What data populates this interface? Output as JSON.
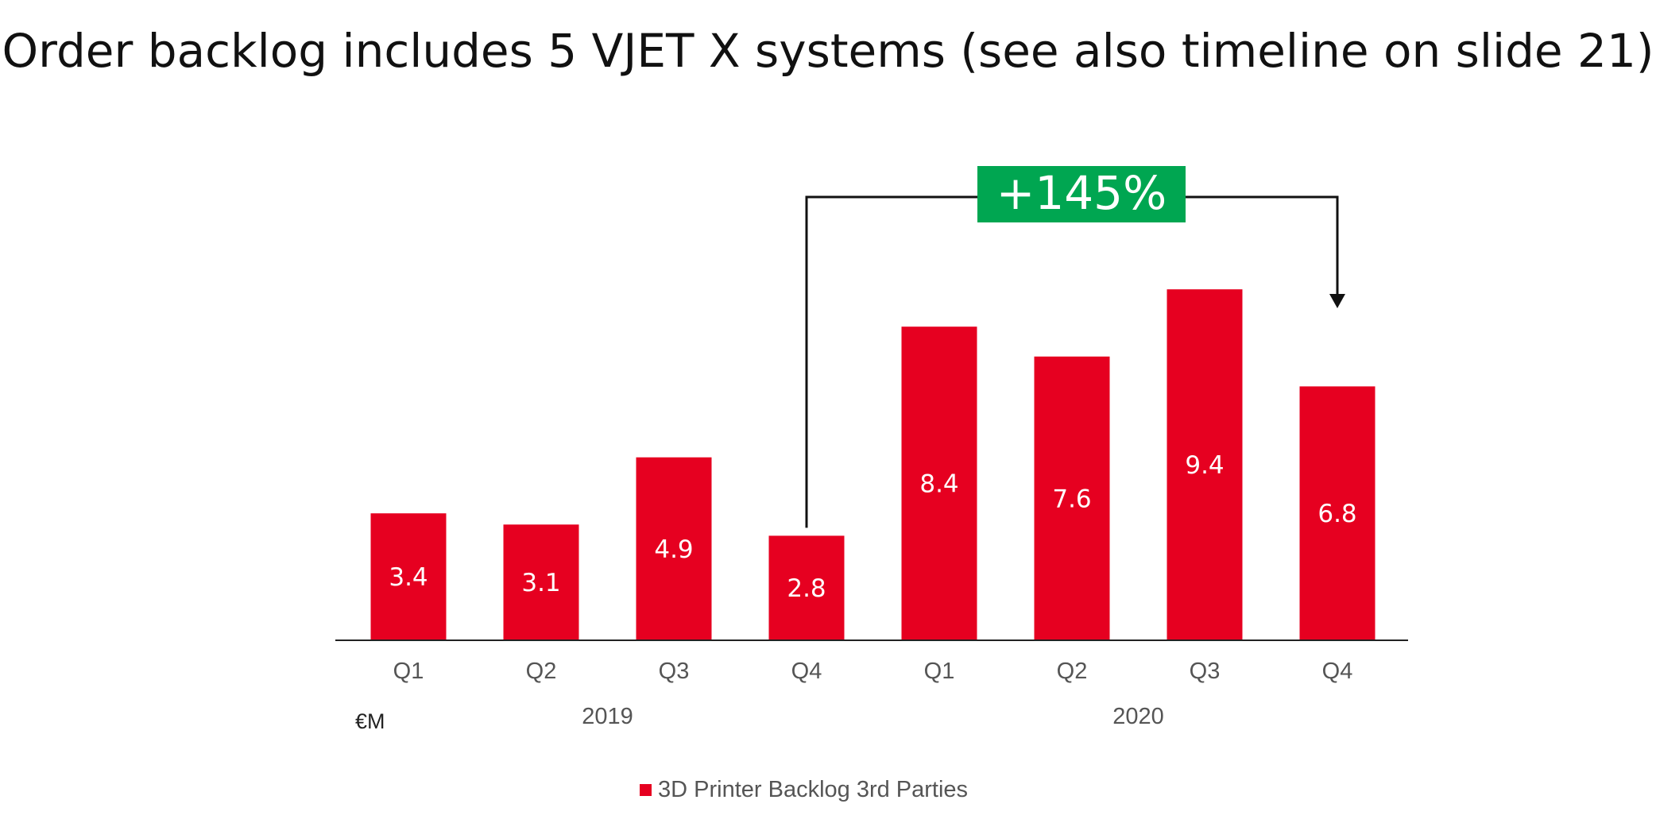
{
  "title": "Order backlog includes 5 VJET X systems (see also timeline on slide 21)",
  "unit": "€M",
  "colors": {
    "bar": "#E60020",
    "growth_badge": "#00A651",
    "axis": "#222222",
    "tick_text": "#555555",
    "value_text": "#FFFFFF"
  },
  "chart_data": {
    "type": "bar",
    "categories": [
      "Q1",
      "Q2",
      "Q3",
      "Q4",
      "Q1",
      "Q2",
      "Q3",
      "Q4"
    ],
    "groups": [
      {
        "label": "2019",
        "categories": [
          "Q1",
          "Q2",
          "Q3",
          "Q4"
        ]
      },
      {
        "label": "2020",
        "categories": [
          "Q1",
          "Q2",
          "Q3",
          "Q4"
        ]
      }
    ],
    "series": [
      {
        "name": "3D Printer Backlog 3rd Parties",
        "values": [
          3.4,
          3.1,
          4.9,
          2.8,
          8.4,
          7.6,
          9.4,
          6.8
        ]
      }
    ],
    "ylim": [
      0,
      10
    ],
    "grid": false,
    "data_labels": true,
    "legend_position": "bottom",
    "annotation": {
      "text": "+145%",
      "from_index": 3,
      "to_index": 7
    }
  }
}
